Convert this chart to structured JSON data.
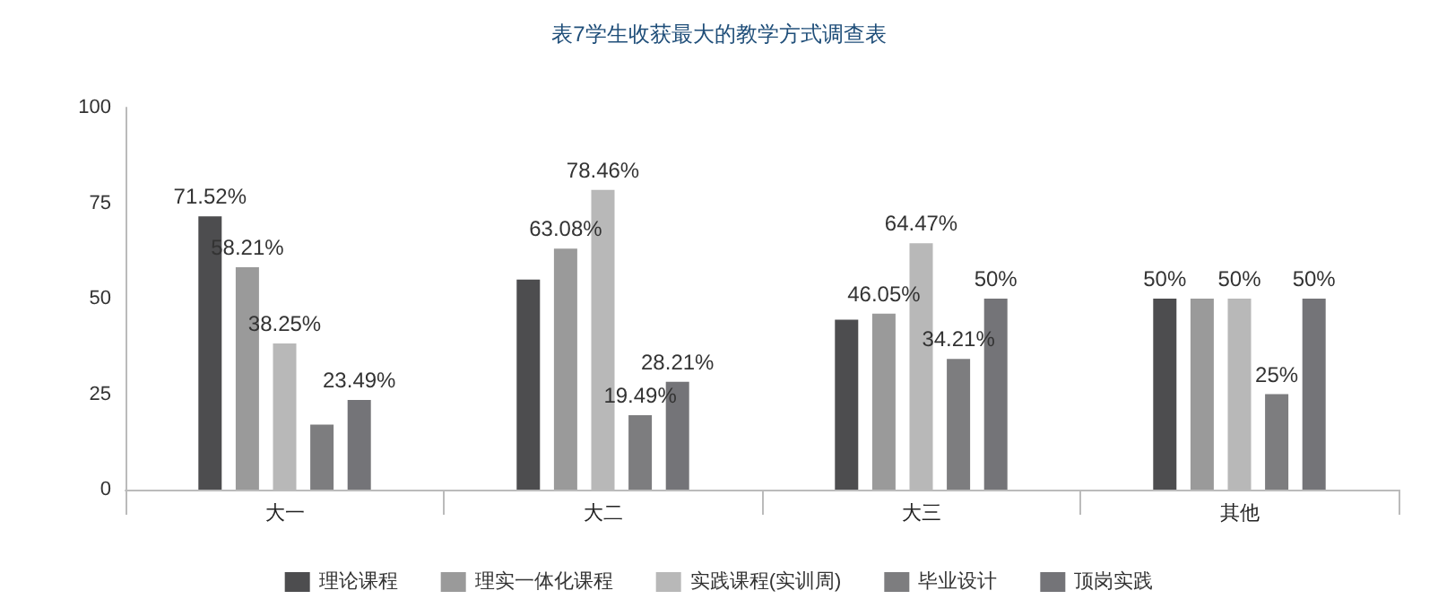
{
  "chart_data": {
    "type": "bar",
    "title": "表7学生收获最大的教学方式调查表",
    "categories": [
      "大一",
      "大二",
      "大三",
      "其他"
    ],
    "series": [
      {
        "name": "理论课程",
        "color": "#4d4d4f",
        "values": [
          71.52,
          55,
          44.5,
          50
        ],
        "value_labels": [
          "71.52%",
          null,
          null,
          "50%"
        ]
      },
      {
        "name": "理实一体化课程",
        "color": "#9a9a9a",
        "values": [
          58.21,
          63.08,
          46.05,
          50
        ],
        "value_labels": [
          "58.21%",
          "63.08%",
          "46.05%",
          null
        ]
      },
      {
        "name": "实践课程(实训周)",
        "color": "#b8b8b8",
        "values": [
          38.25,
          78.46,
          64.47,
          50
        ],
        "value_labels": [
          "38.25%",
          "78.46%",
          "64.47%",
          "50%"
        ]
      },
      {
        "name": "毕业设计",
        "color": "#7d7d7f",
        "values": [
          17,
          19.49,
          34.21,
          25
        ],
        "value_labels": [
          null,
          "19.49%",
          "34.21%",
          "25%"
        ]
      },
      {
        "name": "顶岗实践",
        "color": "#747478",
        "values": [
          23.49,
          28.21,
          50,
          50
        ],
        "value_labels": [
          "23.49%",
          "28.21%",
          "50%",
          "50%"
        ]
      }
    ],
    "ylim": [
      0,
      100
    ],
    "yticks": [
      0,
      25,
      50,
      75,
      100
    ],
    "grid": false,
    "legend": "bottom"
  }
}
